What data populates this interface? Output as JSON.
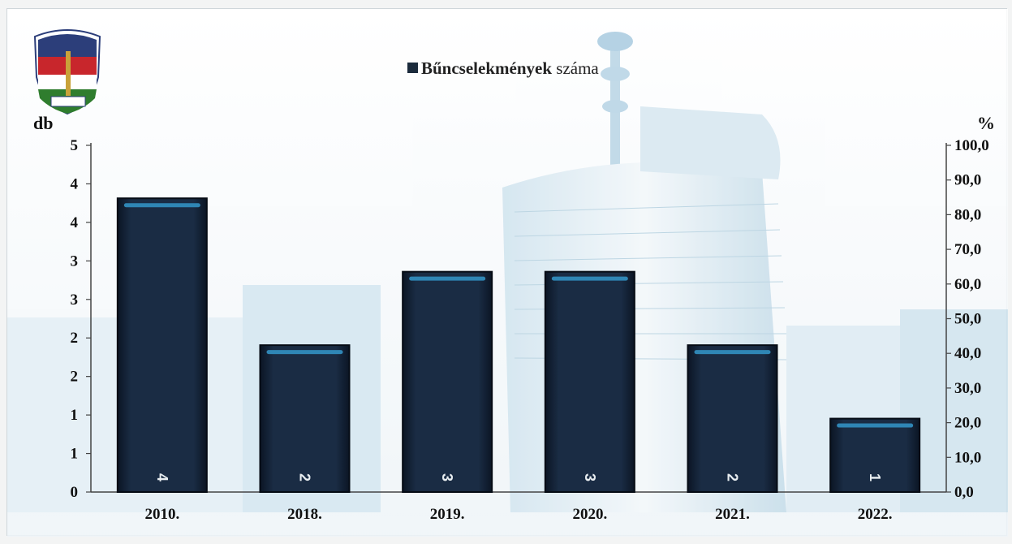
{
  "chart_data": {
    "type": "bar",
    "categories": [
      "2010.",
      "2018.",
      "2019.",
      "2020.",
      "2021.",
      "2022."
    ],
    "series": [
      {
        "name": "Bűncselekmények száma",
        "values": [
          4,
          2,
          3,
          3,
          2,
          1
        ]
      }
    ],
    "data_labels": [
      "4",
      "2",
      "3",
      "3",
      "2",
      "1"
    ],
    "left_axis": {
      "unit": "db",
      "ticks": [
        "0",
        "1",
        "1",
        "2",
        "2",
        "3",
        "3",
        "4",
        "4",
        "5"
      ],
      "ylim": [
        0,
        4.5
      ]
    },
    "right_axis": {
      "unit": "%",
      "ticks": [
        "0,0",
        "10,0",
        "20,0",
        "30,0",
        "40,0",
        "50,0",
        "60,0",
        "70,0",
        "80,0",
        "90,0",
        "100,0"
      ],
      "ylim": [
        0,
        100
      ]
    },
    "legend": {
      "label": "Bűncselekmények száma",
      "placement": "top-center"
    },
    "grid": false,
    "colors": {
      "bar": "#14243a",
      "bar_edge": "#050b14",
      "bar_highlight": "#2f86b5",
      "logo_red": "#c8262c",
      "logo_green": "#2f7d2e"
    }
  }
}
